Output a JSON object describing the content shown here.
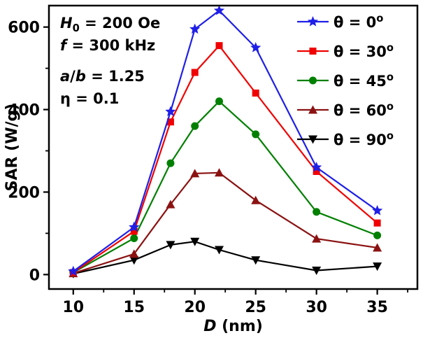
{
  "chart_data": {
    "type": "line",
    "title": "",
    "xlabel_segments": [
      {
        "text": "D",
        "italic": true
      },
      {
        "text": " (nm)"
      }
    ],
    "ylabel": "SAR (W/g)",
    "x_ticks": [
      10,
      15,
      20,
      25,
      30,
      35
    ],
    "y_ticks": [
      0,
      200,
      400,
      600
    ],
    "x_minor_step": 2.5,
    "y_minor_step": 100,
    "xlim": [
      8.0,
      38.3
    ],
    "ylim": [
      -35,
      652
    ],
    "grid": false,
    "legend_position": "top-right",
    "x": [
      10,
      15,
      18,
      20,
      22,
      25,
      30,
      35
    ],
    "series": [
      {
        "name": "theta-0",
        "color": "#1f1fe8",
        "marker": "star",
        "values": [
          8,
          115,
          395,
          595,
          640,
          550,
          260,
          155
        ],
        "label_segments": [
          {
            "text": "θ = 0"
          },
          {
            "text": "o",
            "sup": true
          }
        ]
      },
      {
        "name": "theta-30",
        "color": "#f00000",
        "marker": "square",
        "values": [
          5,
          105,
          370,
          490,
          555,
          440,
          250,
          125
        ],
        "label_segments": [
          {
            "text": "θ = 30"
          },
          {
            "text": "o",
            "sup": true
          }
        ]
      },
      {
        "name": "theta-45",
        "color": "#008000",
        "marker": "circle",
        "values": [
          5,
          88,
          270,
          360,
          420,
          340,
          152,
          95
        ],
        "label_segments": [
          {
            "text": "θ = 45"
          },
          {
            "text": "o",
            "sup": true
          }
        ]
      },
      {
        "name": "theta-60",
        "color": "#8b1212",
        "marker": "triangle-up",
        "values": [
          3,
          50,
          170,
          245,
          247,
          180,
          87,
          65
        ],
        "label_segments": [
          {
            "text": "θ = 60"
          },
          {
            "text": "o",
            "sup": true
          }
        ]
      },
      {
        "name": "theta-90",
        "color": "#000000",
        "marker": "triangle-down",
        "values": [
          2,
          35,
          72,
          80,
          60,
          35,
          10,
          20
        ],
        "label_segments": [
          {
            "text": "θ = 90"
          },
          {
            "text": "o",
            "sup": true
          }
        ]
      }
    ],
    "annotations": [
      {
        "segments": [
          {
            "text": "H",
            "italic": true
          },
          {
            "text": "0",
            "sub": true
          },
          {
            "text": " = 200 Oe"
          }
        ]
      },
      {
        "segments": [
          {
            "text": "f",
            "italic": true
          },
          {
            "text": " = 300 kHz"
          }
        ]
      },
      {
        "segments": [
          {
            "text": "a",
            "italic": true
          },
          {
            "text": "/"
          },
          {
            "text": "b",
            "italic": true
          },
          {
            "text": " = 1.25"
          }
        ]
      },
      {
        "segments": [
          {
            "text": "η = 0.1"
          }
        ]
      }
    ]
  }
}
